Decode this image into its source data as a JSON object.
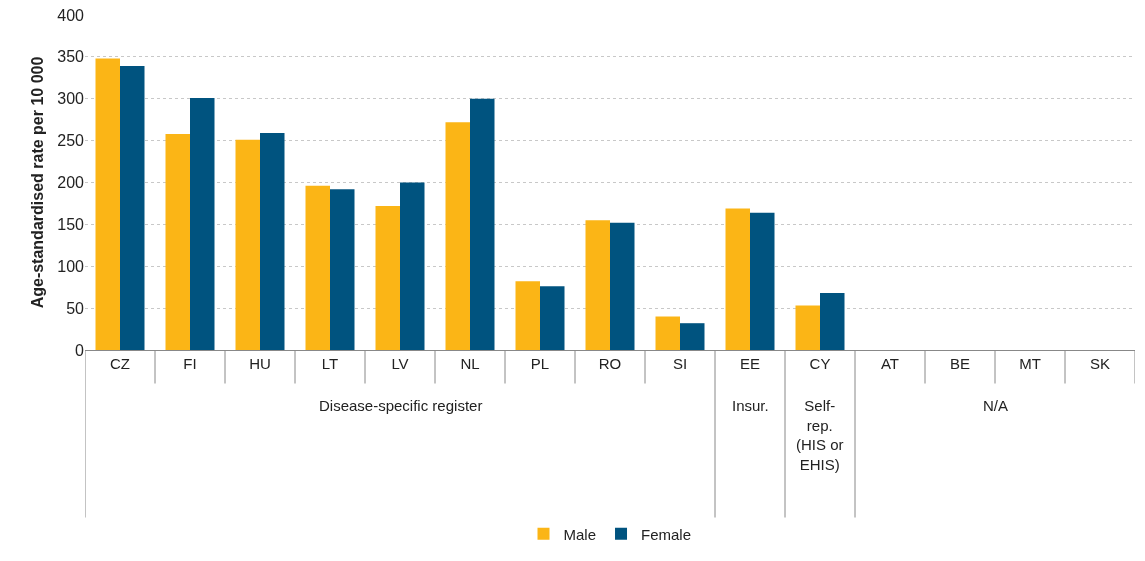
{
  "chart_data": {
    "type": "bar",
    "ylabel": "Age-standardised rate per 10 000",
    "categories": [
      "CZ",
      "FI",
      "HU",
      "LT",
      "LV",
      "NL",
      "PL",
      "RO",
      "SI",
      "EE",
      "CY",
      "AT",
      "BE",
      "MT",
      "SK"
    ],
    "series": [
      {
        "name": "Male",
        "color": "#fbb516",
        "values": [
          348,
          258,
          251,
          196,
          172,
          272,
          82,
          155,
          40,
          169,
          53,
          null,
          null,
          null,
          null
        ]
      },
      {
        "name": "Female",
        "color": "#00537f",
        "values": [
          339,
          301,
          259,
          192,
          200,
          300,
          76,
          152,
          32,
          164,
          68,
          null,
          null,
          null,
          null
        ]
      }
    ],
    "annotations": [
      "Disease-specific register",
      "Insur.",
      "Self-\nrep.\n(HIS or\nEHIS)",
      "N/A"
    ],
    "ylim": [
      0,
      400
    ],
    "yticks": [
      0,
      50,
      100,
      150,
      200,
      250,
      300,
      350,
      400
    ],
    "grid": "y",
    "legend": "bottom"
  }
}
